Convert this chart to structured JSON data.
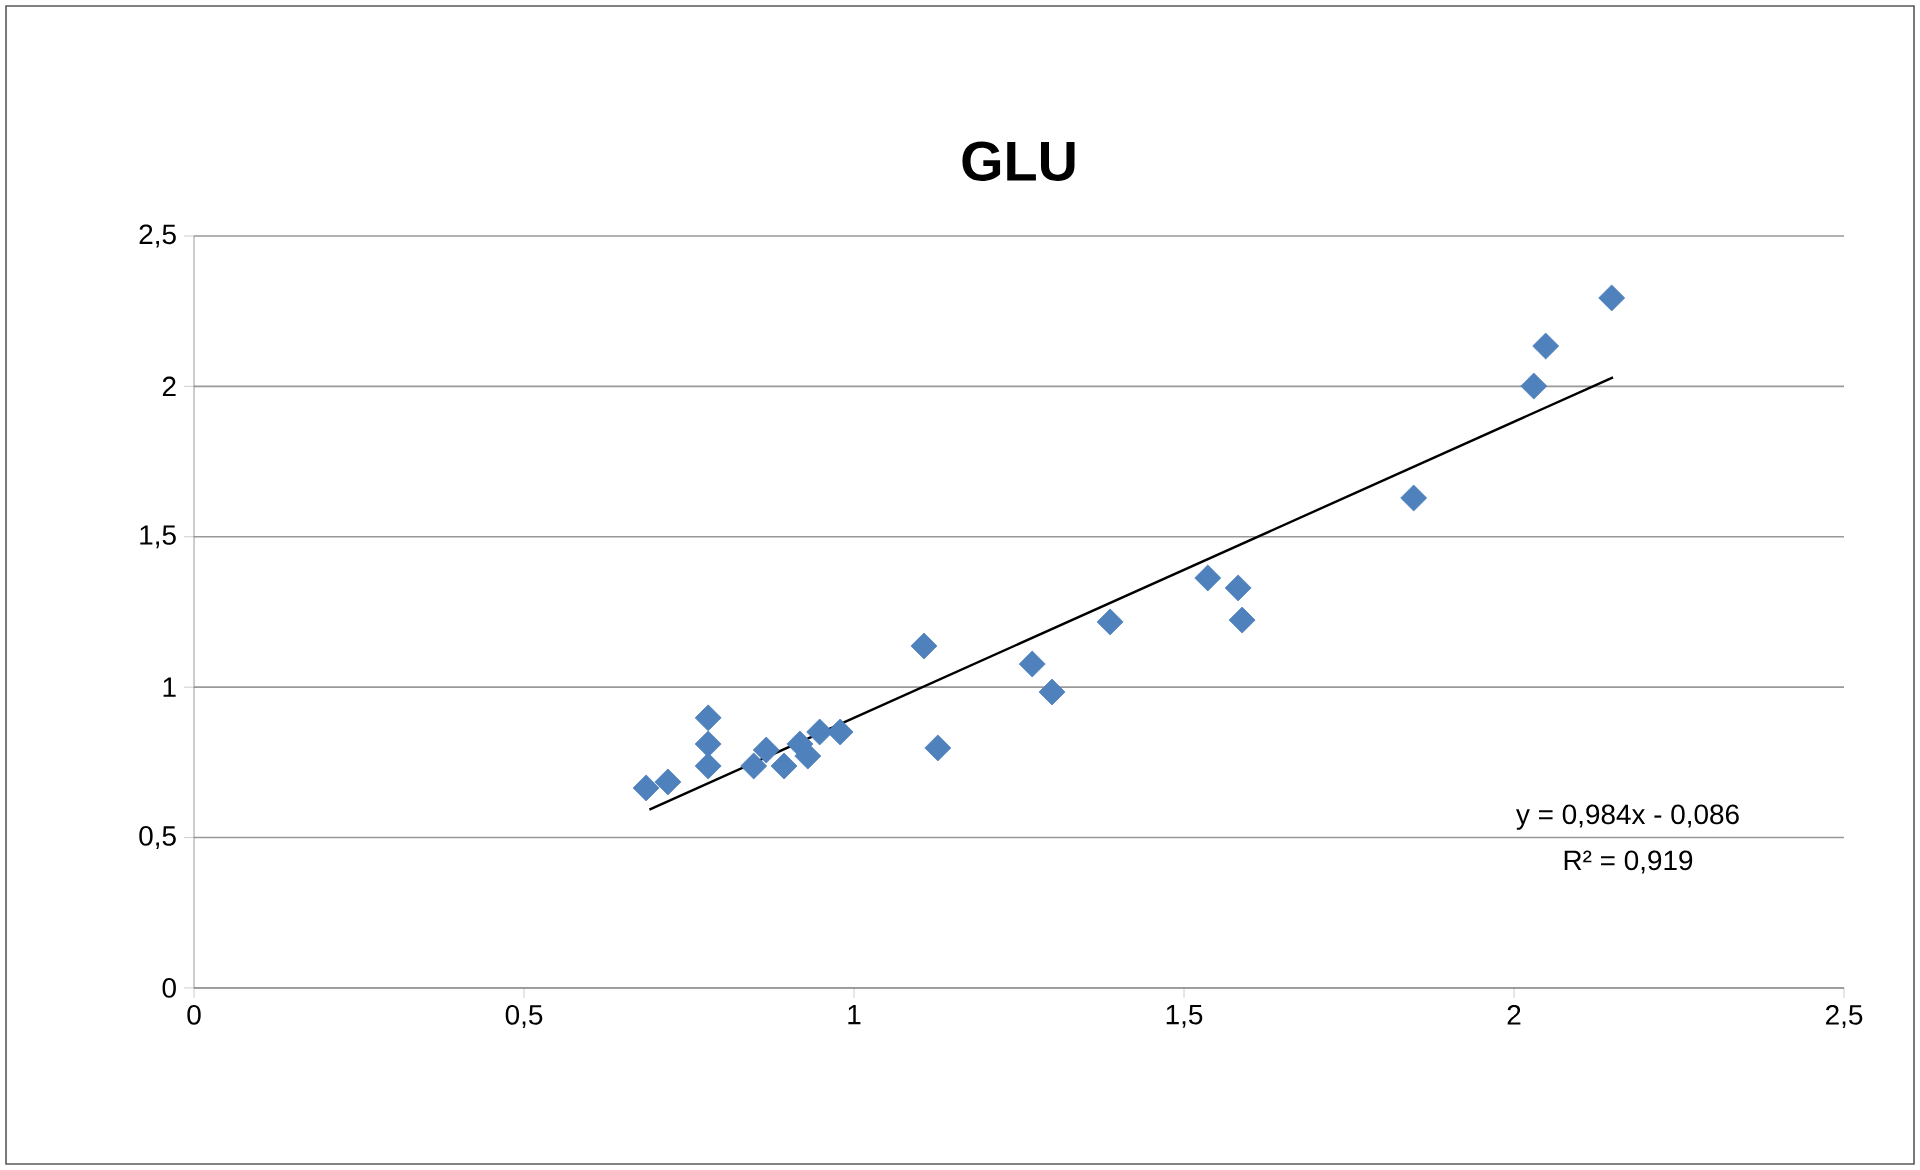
{
  "chart_data": {
    "type": "scatter",
    "title": "GLU",
    "series": [
      {
        "color": "#4f81bd",
        "marker": "diamond",
        "x": [
          0.685,
          0.718,
          0.779,
          0.779,
          0.779,
          0.848,
          0.867,
          0.894,
          0.918,
          0.93,
          0.948,
          0.979,
          1.106,
          1.127,
          1.27,
          1.3,
          1.388,
          1.536,
          1.582,
          1.588,
          1.848,
          2.03,
          2.048,
          2.148
        ],
        "values": [
          0.665,
          0.685,
          0.898,
          0.811,
          0.738,
          0.738,
          0.791,
          0.738,
          0.811,
          0.771,
          0.851,
          0.851,
          1.137,
          0.798,
          1.077,
          0.984,
          1.217,
          1.363,
          1.33,
          1.223,
          1.629,
          2.001,
          2.134,
          2.294
        ]
      },
      {
        "type": "line",
        "color": "#000000",
        "marker": "none",
        "line_style": "solid",
        "x": [
          0.69,
          2.15
        ],
        "values": [
          0.593,
          2.03
        ]
      }
    ],
    "xlim": [
      0,
      2.5
    ],
    "ylim": [
      0,
      2.5
    ],
    "xticks": [
      0,
      {
        "value": 0.5,
        "label": "0,5"
      },
      1,
      {
        "value": 1.5,
        "label": "1,5"
      },
      2,
      {
        "value": 2.5,
        "label": "2,5"
      }
    ],
    "yticks": [
      0,
      {
        "value": 0.5,
        "label": "0,5"
      },
      1,
      {
        "value": 1.5,
        "label": "1,5"
      },
      2,
      {
        "value": 2.5,
        "label": "2,5"
      }
    ],
    "grid": "y",
    "annotations": [
      "y = 0,984x - 0,086",
      "R² = 0,919"
    ]
  }
}
